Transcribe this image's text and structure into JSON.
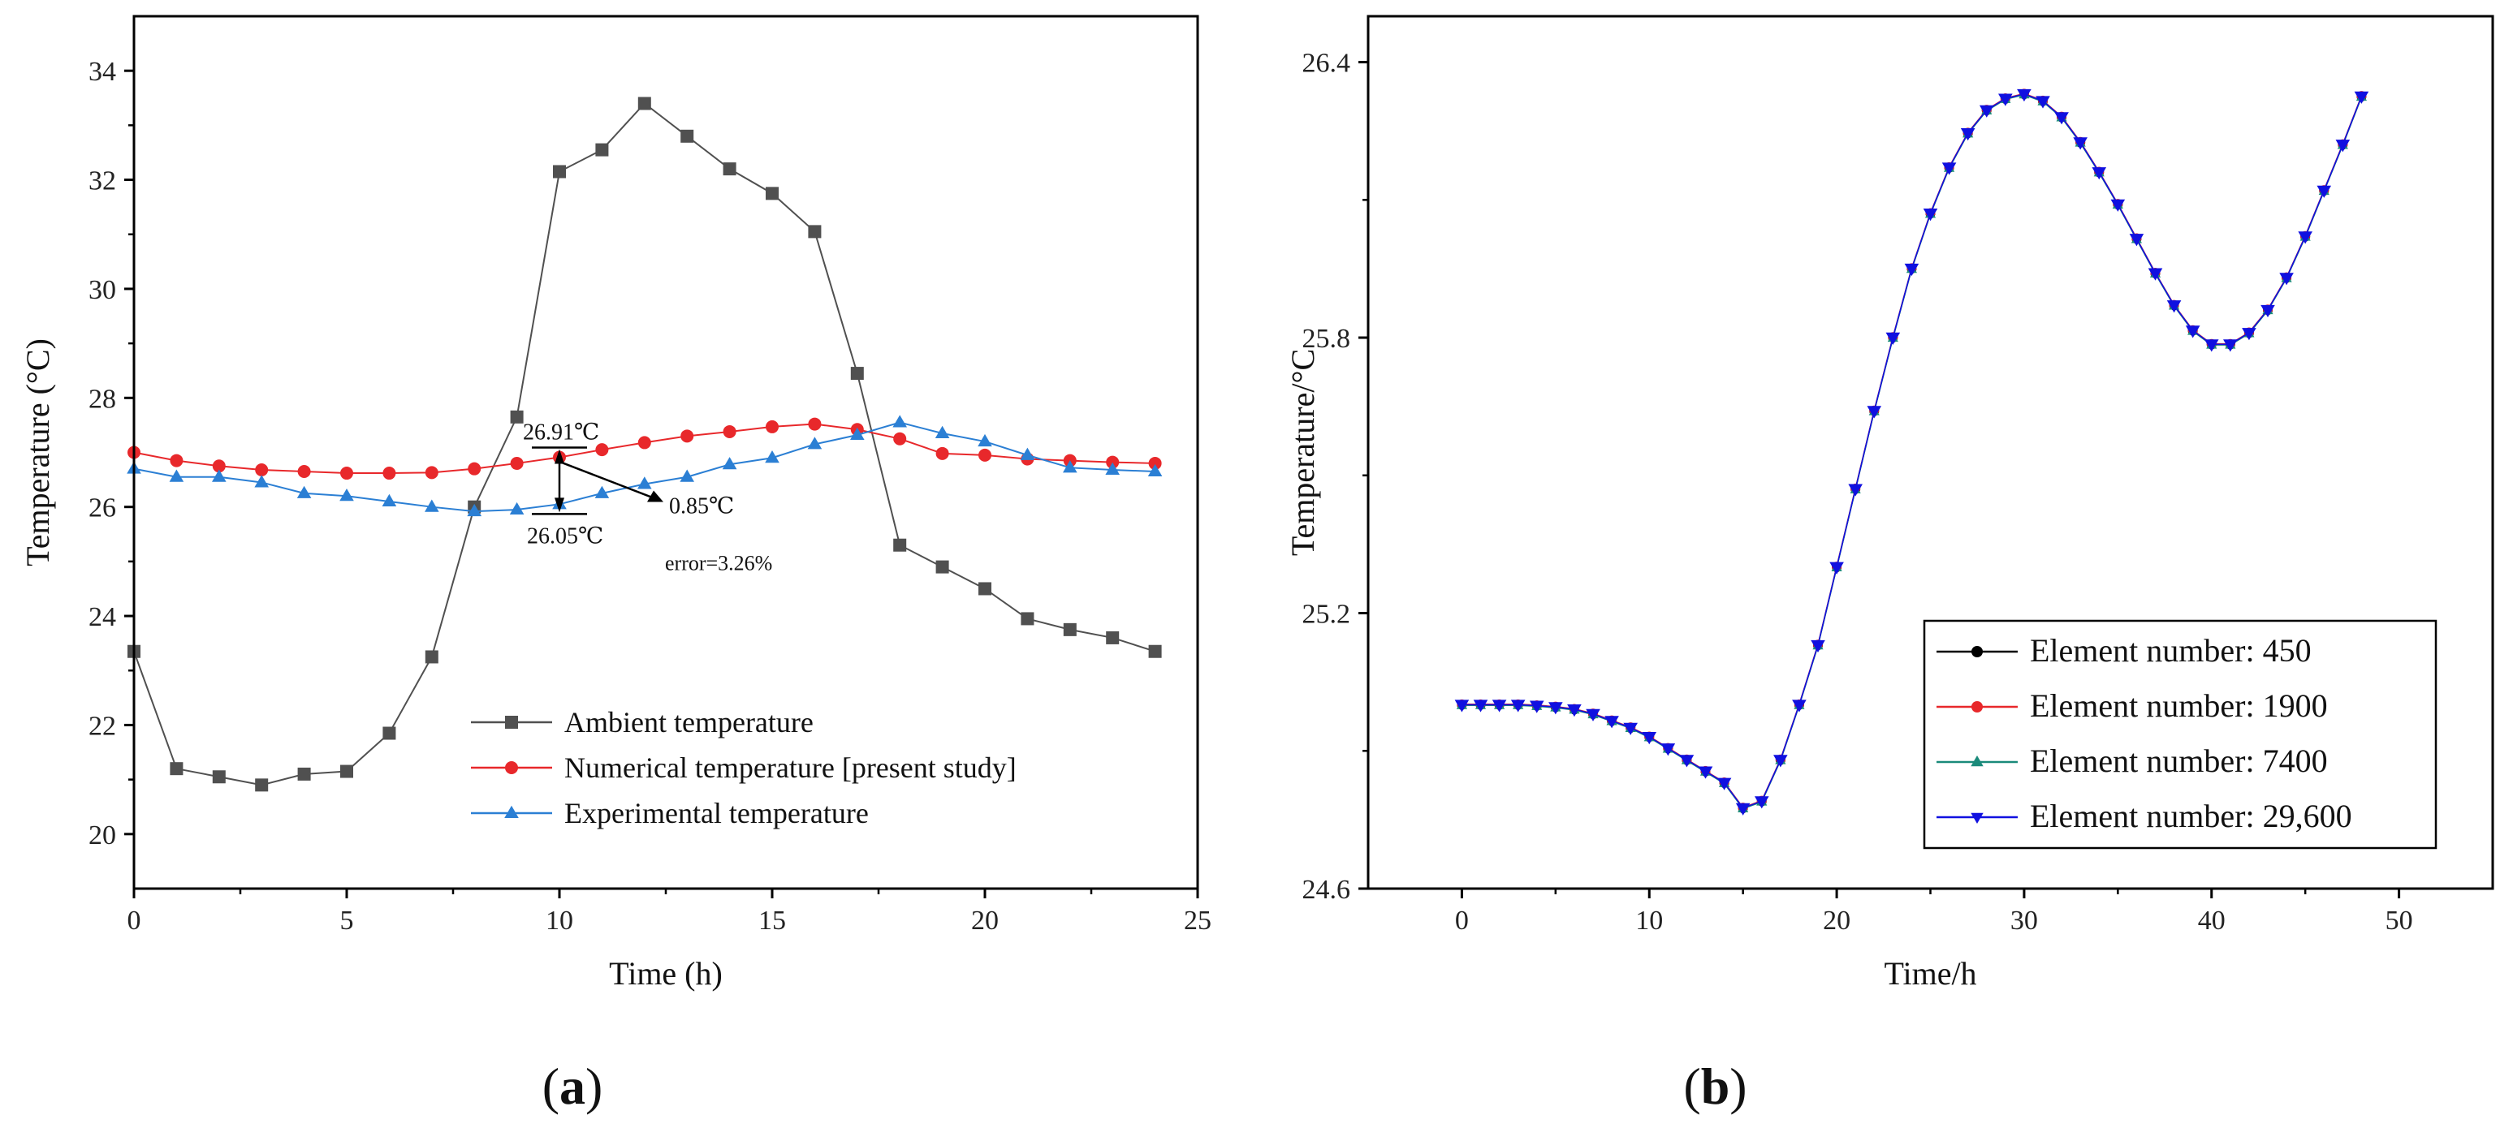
{
  "chart_data": [
    {
      "id": "a",
      "type": "line",
      "panel_label": "(a)",
      "panel_letter": "a",
      "xlabel": "Time (h)",
      "ylabel": "Temperature (°C)",
      "xlim": [
        0,
        25
      ],
      "ylim": [
        19,
        35
      ],
      "xticks": [
        0,
        5,
        10,
        15,
        20,
        25
      ],
      "yticks": [
        20,
        22,
        24,
        26,
        28,
        30,
        32,
        34
      ],
      "legend_position": "bottom-right",
      "series": [
        {
          "name": "Ambient temperature",
          "color": "#505050",
          "marker": "square",
          "x": [
            0,
            1,
            2,
            3,
            4,
            5,
            6,
            7,
            8,
            9,
            10,
            11,
            12,
            13,
            14,
            15,
            16,
            17,
            18,
            19,
            20,
            21,
            22,
            23,
            24
          ],
          "values": [
            23.35,
            21.2,
            21.05,
            20.9,
            21.1,
            21.15,
            21.85,
            23.25,
            26.0,
            27.65,
            32.15,
            32.55,
            33.4,
            32.8,
            32.2,
            31.75,
            31.05,
            28.45,
            25.3,
            24.9,
            24.5,
            23.95,
            23.75,
            23.6,
            23.35
          ]
        },
        {
          "name": "Numerical temperature [present study]",
          "color": "#e8282b",
          "marker": "circle",
          "x": [
            0,
            1,
            2,
            3,
            4,
            5,
            6,
            7,
            8,
            9,
            10,
            11,
            12,
            13,
            14,
            15,
            16,
            17,
            18,
            19,
            20,
            21,
            22,
            23,
            24
          ],
          "values": [
            27.0,
            26.85,
            26.75,
            26.68,
            26.65,
            26.62,
            26.62,
            26.63,
            26.7,
            26.8,
            26.91,
            27.05,
            27.18,
            27.3,
            27.38,
            27.47,
            27.52,
            27.42,
            27.25,
            26.98,
            26.95,
            26.88,
            26.85,
            26.82,
            26.8
          ]
        },
        {
          "name": "Experimental temperature",
          "color": "#2b7fd4",
          "marker": "triangle-up",
          "x": [
            0,
            1,
            2,
            3,
            4,
            5,
            6,
            7,
            8,
            9,
            10,
            11,
            12,
            13,
            14,
            15,
            16,
            17,
            18,
            19,
            20,
            21,
            22,
            23,
            24
          ],
          "values": [
            26.7,
            26.55,
            26.55,
            26.45,
            26.25,
            26.2,
            26.1,
            26.0,
            25.92,
            25.95,
            26.05,
            26.25,
            26.42,
            26.55,
            26.78,
            26.9,
            27.15,
            27.32,
            27.55,
            27.35,
            27.2,
            26.95,
            26.72,
            26.68,
            26.65
          ]
        }
      ],
      "annotations": {
        "upper_value": "26.91℃",
        "lower_value": "26.05℃",
        "difference": "0.85℃",
        "error": "error=3.26%",
        "at_x": 10,
        "upper_y": 26.91,
        "lower_y": 26.05
      }
    },
    {
      "id": "b",
      "type": "line",
      "panel_label": "(b)",
      "panel_letter": "b",
      "xlabel": "Time/h",
      "ylabel": "Temperature/°C",
      "xlim": [
        -5,
        55
      ],
      "ylim": [
        24.6,
        26.5
      ],
      "xticks": [
        0,
        10,
        20,
        30,
        40,
        50
      ],
      "yticks": [
        24.6,
        25.2,
        25.8,
        26.4
      ],
      "ytick_labels": [
        "24.6",
        "25.2",
        "25.8",
        "26.4"
      ],
      "legend_position": "bottom-right",
      "x": [
        0,
        1,
        2,
        3,
        4,
        5,
        6,
        7,
        8,
        9,
        10,
        11,
        12,
        13,
        14,
        15,
        16,
        17,
        18,
        19,
        20,
        21,
        22,
        23,
        24,
        25,
        26,
        27,
        28,
        29,
        30,
        31,
        32,
        33,
        34,
        35,
        36,
        37,
        38,
        39,
        40,
        41,
        42,
        43,
        44,
        45,
        46,
        47,
        48
      ],
      "base_values": [
        25.0,
        25.0,
        25.0,
        25.0,
        24.998,
        24.995,
        24.99,
        24.98,
        24.965,
        24.95,
        24.93,
        24.905,
        24.88,
        24.855,
        24.83,
        24.775,
        24.79,
        24.88,
        25.0,
        25.13,
        25.3,
        25.47,
        25.64,
        25.8,
        25.95,
        26.07,
        26.17,
        26.245,
        26.295,
        26.32,
        26.33,
        26.315,
        26.28,
        26.225,
        26.16,
        26.09,
        26.015,
        25.94,
        25.87,
        25.815,
        25.785,
        25.785,
        25.81,
        25.86,
        25.93,
        26.02,
        26.12,
        26.22,
        26.325
      ],
      "series": [
        {
          "name": "Element number: 450",
          "color": "#000000",
          "marker": "circle"
        },
        {
          "name": "Element number: 1900",
          "color": "#e8282b",
          "marker": "circle"
        },
        {
          "name": "Element number: 7400",
          "color": "#1a8a7a",
          "marker": "triangle-up"
        },
        {
          "name": "Element number: 29,600",
          "color": "#1010e0",
          "marker": "triangle-down"
        }
      ]
    }
  ]
}
